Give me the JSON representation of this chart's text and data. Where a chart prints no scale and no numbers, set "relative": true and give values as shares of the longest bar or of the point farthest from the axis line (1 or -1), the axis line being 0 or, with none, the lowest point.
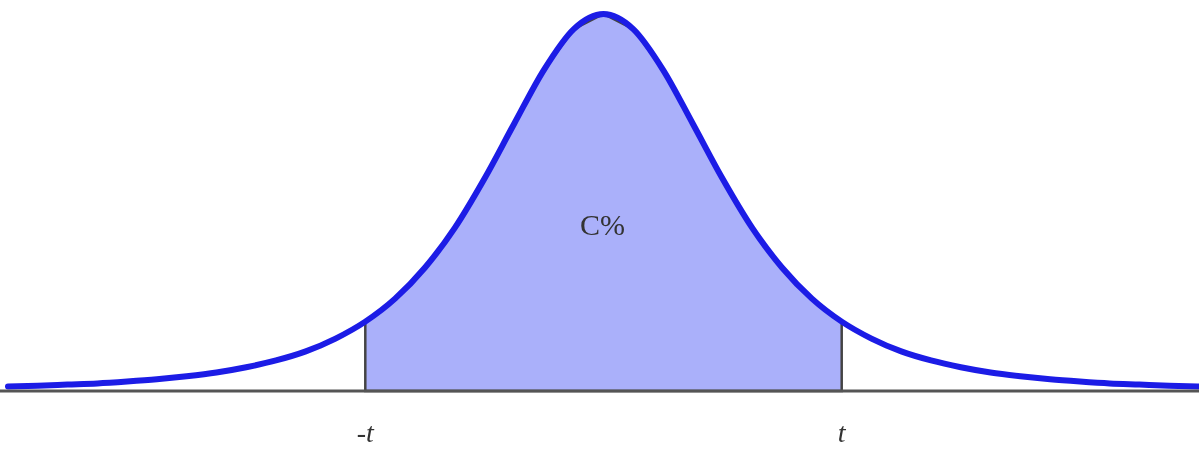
{
  "chart_data": {
    "type": "line",
    "relative": true,
    "categories": [
      null,
      null,
      null,
      null,
      null,
      null,
      null,
      null,
      null,
      null,
      null,
      null,
      "-t",
      null,
      null,
      null,
      null,
      null,
      null,
      null,
      null,
      null,
      null,
      null,
      null,
      null,
      null,
      null,
      "t",
      null,
      null,
      null,
      null,
      null,
      null,
      null,
      null,
      null,
      null,
      null,
      null
    ],
    "annotations": [
      "C%"
    ],
    "series": [
      {
        "type": "area",
        "color": "#aab0fa",
        "values": [
          null,
          null,
          null,
          null,
          null,
          null,
          null,
          null,
          null,
          null,
          null,
          null,
          0.184,
          0.245,
          0.327,
          0.432,
          0.563,
          0.709,
          0.852,
          0.96,
          1,
          0.96,
          0.852,
          0.709,
          0.563,
          0.432,
          0.327,
          0.245,
          0.184,
          null,
          null,
          null,
          null,
          null,
          null,
          null,
          null,
          null,
          null,
          null,
          null
        ]
      },
      {
        "color": "#1c1ce6",
        "values": [
          0.012,
          0.014,
          0.017,
          0.02,
          0.025,
          0.031,
          0.039,
          0.049,
          0.063,
          0.081,
          0.105,
          0.139,
          0.184,
          0.245,
          0.327,
          0.432,
          0.563,
          0.709,
          0.852,
          0.96,
          1,
          0.96,
          0.852,
          0.709,
          0.563,
          0.432,
          0.327,
          0.245,
          0.184,
          0.139,
          0.105,
          0.081,
          0.063,
          0.049,
          0.039,
          0.031,
          0.025,
          0.02,
          0.017,
          0.014,
          0.012
        ]
      }
    ]
  }
}
